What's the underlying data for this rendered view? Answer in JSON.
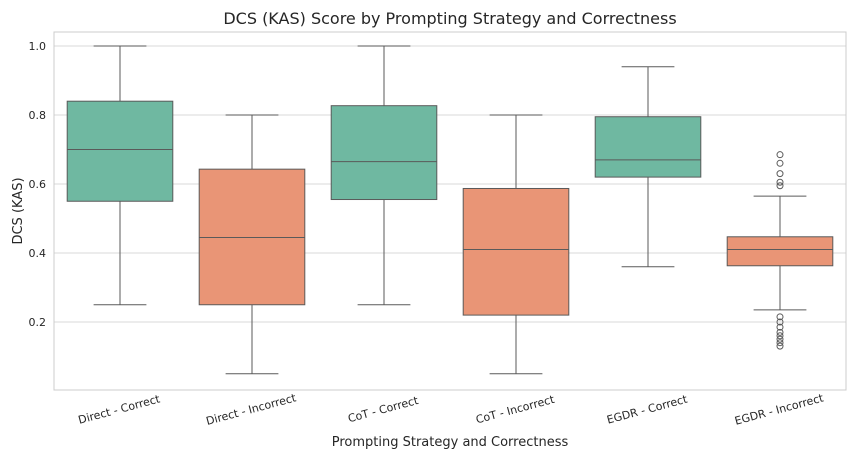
{
  "chart_data": {
    "type": "box",
    "title": "DCS (KAS) Score by Prompting Strategy and Correctness",
    "xlabel": "Prompting Strategy and Correctness",
    "ylabel": "DCS (KAS)",
    "ylim": [
      0.0,
      1.03
    ],
    "yticks": [
      0.2,
      0.4,
      0.6,
      0.8,
      1.0
    ],
    "ytick_labels": [
      "0.2",
      "0.4",
      "0.6",
      "0.8",
      "1.0"
    ],
    "grid": true,
    "colors": {
      "correct": "#6fb8a1",
      "incorrect": "#e99576"
    },
    "boxes": [
      {
        "label": "Direct - Correct",
        "kind": "correct",
        "whislo": 0.25,
        "q1": 0.55,
        "med": 0.7,
        "q3": 0.84,
        "whishi": 1.0,
        "fliers": []
      },
      {
        "label": "Direct - Incorrect",
        "kind": "incorrect",
        "whislo": 0.05,
        "q1": 0.25,
        "med": 0.445,
        "q3": 0.643,
        "whishi": 0.8,
        "fliers": []
      },
      {
        "label": "CoT - Correct",
        "kind": "correct",
        "whislo": 0.25,
        "q1": 0.555,
        "med": 0.665,
        "q3": 0.827,
        "whishi": 1.0,
        "fliers": []
      },
      {
        "label": "CoT - Incorrect",
        "kind": "incorrect",
        "whislo": 0.05,
        "q1": 0.22,
        "med": 0.41,
        "q3": 0.587,
        "whishi": 0.8,
        "fliers": []
      },
      {
        "label": "EGDR - Correct",
        "kind": "correct",
        "whislo": 0.36,
        "q1": 0.62,
        "med": 0.67,
        "q3": 0.795,
        "whishi": 0.94,
        "fliers": []
      },
      {
        "label": "EGDR - Incorrect",
        "kind": "incorrect",
        "whislo": 0.235,
        "q1": 0.363,
        "med": 0.41,
        "q3": 0.447,
        "whishi": 0.565,
        "fliers": [
          0.685,
          0.66,
          0.63,
          0.605,
          0.595,
          0.215,
          0.2,
          0.185,
          0.17,
          0.16,
          0.15,
          0.14,
          0.13
        ]
      }
    ]
  }
}
